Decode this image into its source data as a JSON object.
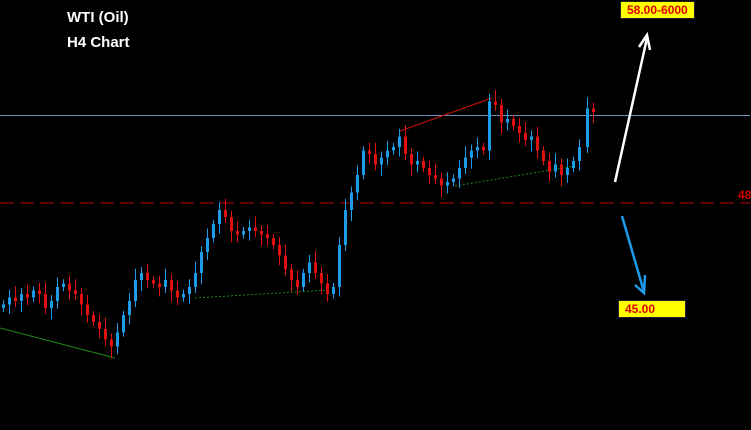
{
  "header": {
    "instrument": "WTI (Oil)",
    "timeframe": "H4 Chart"
  },
  "colors": {
    "background": "#000000",
    "bull": "#1e9be8",
    "bear": "#e01010",
    "target_label_bg": "#ffff00",
    "target_label_text": "#e00000"
  },
  "targets": {
    "upside": "58.00-6000",
    "downside": "45.00",
    "level_label": "48"
  },
  "chart_data": {
    "type": "candlestick",
    "title": "WTI (Oil)",
    "subtitle": "H4 Chart",
    "closes": [
      45.1,
      45.3,
      45.2,
      45.4,
      45.3,
      45.5,
      45.4,
      45.0,
      45.2,
      45.6,
      45.7,
      45.5,
      45.4,
      45.1,
      44.8,
      44.6,
      44.4,
      44.1,
      43.9,
      44.3,
      44.8,
      45.2,
      45.8,
      46.0,
      45.8,
      45.7,
      45.6,
      45.8,
      45.5,
      45.3,
      45.4,
      45.6,
      46.0,
      46.6,
      47.0,
      47.4,
      47.8,
      47.6,
      47.2,
      47.1,
      47.2,
      47.3,
      47.2,
      47.1,
      47.0,
      46.8,
      46.5,
      46.1,
      45.8,
      45.6,
      46.0,
      46.3,
      46.0,
      45.7,
      45.4,
      45.6,
      46.8,
      47.8,
      48.3,
      48.8,
      49.5,
      49.4,
      49.1,
      49.3,
      49.5,
      49.6,
      49.9,
      49.4,
      49.1,
      49.2,
      49.0,
      48.8,
      48.7,
      48.5,
      48.6,
      48.7,
      49.0,
      49.3,
      49.5,
      49.6,
      49.5,
      50.9,
      50.8,
      50.3,
      50.4,
      50.2,
      50.0,
      49.8,
      49.9,
      49.5,
      49.2,
      48.9,
      49.1,
      48.8,
      49.0,
      49.2,
      49.6,
      50.7,
      50.6
    ],
    "horizontal_levels": [
      {
        "price": 50.5,
        "color": "#6f8fc0",
        "style": "solid"
      },
      {
        "price": 48.0,
        "color": "#c00000",
        "style": "dashed"
      }
    ],
    "projections": [
      {
        "direction": "up",
        "target": "58.00-6000",
        "color": "#ffffff"
      },
      {
        "direction": "down",
        "target": "45.00",
        "color": "#1e9be8"
      }
    ],
    "axes_visible": false,
    "grid": false
  }
}
